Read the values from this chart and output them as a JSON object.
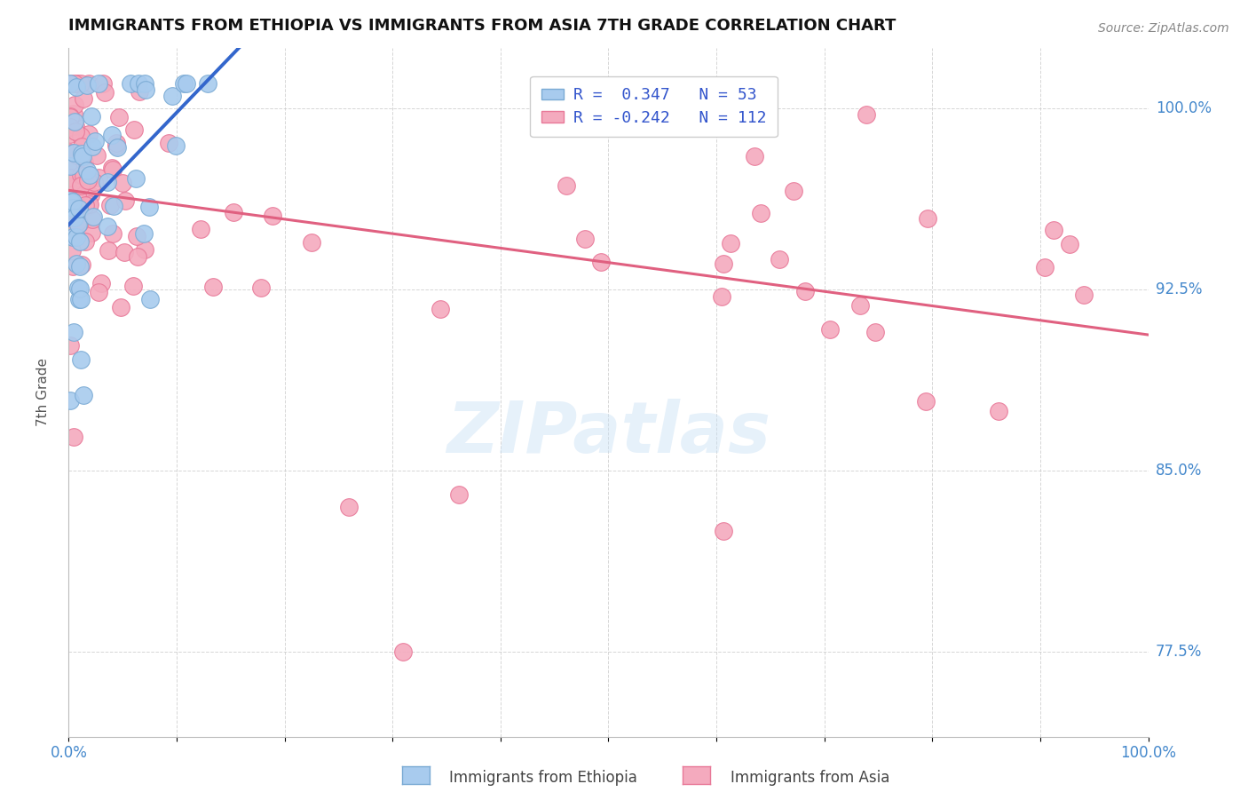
{
  "title": "IMMIGRANTS FROM ETHIOPIA VS IMMIGRANTS FROM ASIA 7TH GRADE CORRELATION CHART",
  "source": "Source: ZipAtlas.com",
  "ylabel": "7th Grade",
  "yticks": [
    77.5,
    85.0,
    92.5,
    100.0
  ],
  "xlim": [
    0.0,
    1.0
  ],
  "ylim": [
    74.0,
    102.5
  ],
  "legend_label1": "R =  0.347   N = 53",
  "legend_label2": "R = -0.242   N = 112",
  "ethiopia_color": "#A8CBEE",
  "asia_color": "#F4AABE",
  "ethiopia_edge": "#7AAAD4",
  "asia_edge": "#E87898",
  "trend_ethiopia_color": "#3366CC",
  "trend_asia_color": "#E06080",
  "watermark": "ZIPatlas",
  "background_color": "#FFFFFF",
  "grid_color": "#CCCCCC",
  "ytick_color": "#4488CC",
  "source_color": "#888888",
  "title_color": "#111111",
  "legend_text_color": "#3355CC",
  "bottom_label_color": "#444444"
}
